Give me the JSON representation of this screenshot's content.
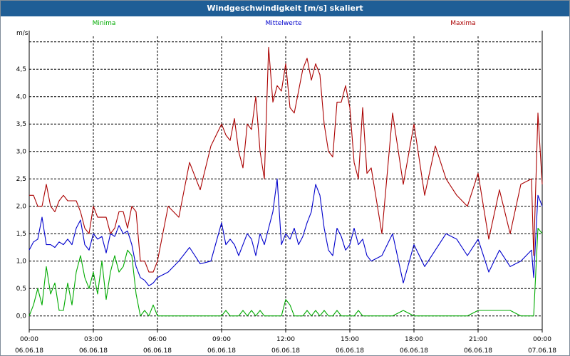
{
  "window": {
    "title": "Windgeschwindigkeit [m/s] skaliert"
  },
  "chart_data": {
    "type": "line",
    "title": "Windgeschwindigkeit [m/s] skaliert",
    "ylabel": "m/s",
    "xlabel": "",
    "ylim": [
      -0.25,
      5.1
    ],
    "yticks": [
      0.0,
      0.5,
      1.0,
      1.5,
      2.0,
      2.5,
      3.0,
      3.5,
      4.0,
      4.5
    ],
    "ytick_labels": [
      "0,0",
      "0,5",
      "1,0",
      "1,5",
      "2,0",
      "2,5",
      "3,0",
      "3,5",
      "4,0",
      "4,5"
    ],
    "xlim_hours": [
      0,
      24
    ],
    "xticks_hours": [
      0,
      3,
      6,
      9,
      12,
      15,
      18,
      21,
      24
    ],
    "xtick_time_labels": [
      "00:00",
      "03:00",
      "06:00",
      "09:00",
      "12:00",
      "15:00",
      "18:00",
      "21:00",
      "00:00"
    ],
    "xtick_date_labels": [
      "06.06.18",
      "06.06.18",
      "06.06.18",
      "06.06.18",
      "06.06.18",
      "06.06.18",
      "06.06.18",
      "06.06.18",
      "07.06.18"
    ],
    "grid": true,
    "legend_placement": "top",
    "series": [
      {
        "name": "Minima",
        "color": "#00aa00",
        "x": [
          0,
          0.2,
          0.4,
          0.6,
          0.8,
          1,
          1.2,
          1.4,
          1.6,
          1.8,
          2,
          2.2,
          2.4,
          2.6,
          2.8,
          3,
          3.2,
          3.4,
          3.6,
          3.8,
          4,
          4.2,
          4.4,
          4.6,
          4.8,
          5,
          5.2,
          5.4,
          5.6,
          5.8,
          6,
          6.5,
          7,
          7.5,
          8,
          8.5,
          9,
          9.2,
          9.4,
          9.6,
          9.8,
          10,
          10.2,
          10.4,
          10.6,
          10.8,
          11,
          11.2,
          11.4,
          11.6,
          11.8,
          12,
          12.2,
          12.4,
          12.6,
          12.8,
          13,
          13.2,
          13.4,
          13.6,
          13.8,
          14,
          14.2,
          14.4,
          14.6,
          14.8,
          15,
          15.2,
          15.4,
          15.6,
          15.8,
          16,
          16.5,
          17,
          17.5,
          18,
          18.5,
          19,
          19.5,
          20,
          20.5,
          21,
          21.5,
          22,
          22.5,
          23,
          23.5,
          23.6,
          23.8,
          24
        ],
        "y": [
          0.0,
          0.2,
          0.5,
          0.2,
          0.9,
          0.4,
          0.6,
          0.1,
          0.1,
          0.6,
          0.2,
          0.8,
          1.1,
          0.7,
          0.5,
          0.8,
          0.4,
          1.0,
          0.3,
          0.8,
          1.1,
          0.8,
          0.9,
          1.2,
          1.1,
          0.4,
          0.0,
          0.1,
          0.0,
          0.2,
          0.0,
          0.0,
          0.0,
          0.0,
          0.0,
          0.0,
          0.0,
          0.1,
          0.0,
          0.0,
          0.0,
          0.1,
          0.0,
          0.1,
          0.0,
          0.1,
          0.0,
          0.0,
          0.0,
          0.0,
          0.0,
          0.3,
          0.2,
          0.0,
          0.0,
          0.0,
          0.1,
          0.0,
          0.1,
          0.0,
          0.1,
          0.0,
          0.0,
          0.1,
          0.0,
          0.0,
          0.0,
          0.0,
          0.1,
          0.0,
          0.0,
          0.0,
          0.0,
          0.0,
          0.1,
          0.0,
          0.0,
          0.0,
          0.0,
          0.0,
          0.0,
          0.1,
          0.1,
          0.1,
          0.1,
          0.0,
          0.0,
          0.0,
          1.6,
          1.5
        ]
      },
      {
        "name": "Mittelwerte",
        "color": "#0000cc",
        "x": [
          0,
          0.2,
          0.4,
          0.6,
          0.8,
          1,
          1.2,
          1.4,
          1.6,
          1.8,
          2,
          2.2,
          2.4,
          2.6,
          2.8,
          3,
          3.2,
          3.4,
          3.6,
          3.8,
          4,
          4.2,
          4.4,
          4.6,
          4.8,
          5,
          5.2,
          5.4,
          5.6,
          5.8,
          6,
          6.5,
          7,
          7.5,
          8,
          8.5,
          9,
          9.2,
          9.4,
          9.6,
          9.8,
          10,
          10.2,
          10.4,
          10.6,
          10.8,
          11,
          11.2,
          11.4,
          11.6,
          11.8,
          12,
          12.2,
          12.4,
          12.6,
          12.8,
          13,
          13.2,
          13.4,
          13.6,
          13.8,
          14,
          14.2,
          14.4,
          14.6,
          14.8,
          15,
          15.2,
          15.4,
          15.6,
          15.8,
          16,
          16.5,
          17,
          17.5,
          18,
          18.5,
          19,
          19.5,
          20,
          20.5,
          21,
          21.5,
          22,
          22.5,
          23,
          23.5,
          23.6,
          23.8,
          24
        ],
        "y": [
          1.2,
          1.35,
          1.4,
          1.8,
          1.3,
          1.3,
          1.25,
          1.35,
          1.3,
          1.4,
          1.3,
          1.6,
          1.75,
          1.3,
          1.2,
          1.5,
          1.4,
          1.45,
          1.15,
          1.5,
          1.45,
          1.65,
          1.5,
          1.55,
          1.3,
          0.9,
          0.7,
          0.65,
          0.55,
          0.6,
          0.7,
          0.8,
          1.0,
          1.25,
          0.95,
          1.0,
          1.7,
          1.3,
          1.4,
          1.3,
          1.1,
          1.3,
          1.5,
          1.4,
          1.1,
          1.5,
          1.3,
          1.6,
          1.9,
          2.5,
          1.3,
          1.5,
          1.4,
          1.6,
          1.3,
          1.45,
          1.7,
          1.9,
          2.4,
          2.2,
          1.6,
          1.2,
          1.1,
          1.6,
          1.45,
          1.2,
          1.3,
          1.6,
          1.3,
          1.4,
          1.1,
          1.0,
          1.1,
          1.5,
          0.6,
          1.3,
          0.9,
          1.2,
          1.5,
          1.4,
          1.1,
          1.4,
          0.8,
          1.2,
          0.9,
          1.0,
          1.2,
          0.7,
          2.2,
          2.0
        ]
      },
      {
        "name": "Maxima",
        "color": "#aa0000",
        "x": [
          0,
          0.2,
          0.4,
          0.6,
          0.8,
          1,
          1.2,
          1.4,
          1.6,
          1.8,
          2,
          2.2,
          2.4,
          2.6,
          2.8,
          3,
          3.2,
          3.4,
          3.6,
          3.8,
          4,
          4.2,
          4.4,
          4.6,
          4.8,
          5,
          5.2,
          5.4,
          5.6,
          5.8,
          6,
          6.5,
          7,
          7.5,
          8,
          8.5,
          9,
          9.2,
          9.4,
          9.6,
          9.8,
          10,
          10.2,
          10.4,
          10.6,
          10.8,
          11,
          11.2,
          11.4,
          11.6,
          11.8,
          12,
          12.2,
          12.4,
          12.6,
          12.8,
          13,
          13.2,
          13.4,
          13.6,
          13.8,
          14,
          14.2,
          14.4,
          14.6,
          14.8,
          15,
          15.2,
          15.4,
          15.6,
          15.8,
          16,
          16.5,
          17,
          17.5,
          18,
          18.5,
          19,
          19.5,
          20,
          20.5,
          21,
          21.5,
          22,
          22.5,
          23,
          23.5,
          23.6,
          23.8,
          24
        ],
        "y": [
          2.2,
          2.2,
          2.0,
          2.0,
          2.4,
          2.0,
          1.9,
          2.1,
          2.2,
          2.1,
          2.1,
          2.1,
          1.9,
          1.6,
          1.5,
          2.0,
          1.8,
          1.8,
          1.8,
          1.5,
          1.6,
          1.9,
          1.9,
          1.6,
          2.0,
          1.9,
          1.0,
          1.0,
          0.8,
          0.8,
          1.0,
          2.0,
          1.8,
          2.8,
          2.3,
          3.1,
          3.5,
          3.3,
          3.2,
          3.6,
          3.0,
          2.7,
          3.5,
          3.4,
          4.0,
          3.0,
          2.5,
          4.9,
          3.9,
          4.2,
          4.1,
          4.6,
          3.8,
          3.7,
          4.1,
          4.5,
          4.7,
          4.3,
          4.6,
          4.4,
          3.5,
          3.0,
          2.9,
          3.9,
          3.9,
          4.2,
          3.8,
          2.8,
          2.5,
          3.8,
          2.6,
          2.7,
          1.5,
          3.7,
          2.4,
          3.5,
          2.2,
          3.1,
          2.5,
          2.2,
          2.0,
          2.6,
          1.4,
          2.3,
          1.5,
          2.4,
          2.5,
          1.1,
          3.7,
          2.4
        ]
      }
    ]
  }
}
